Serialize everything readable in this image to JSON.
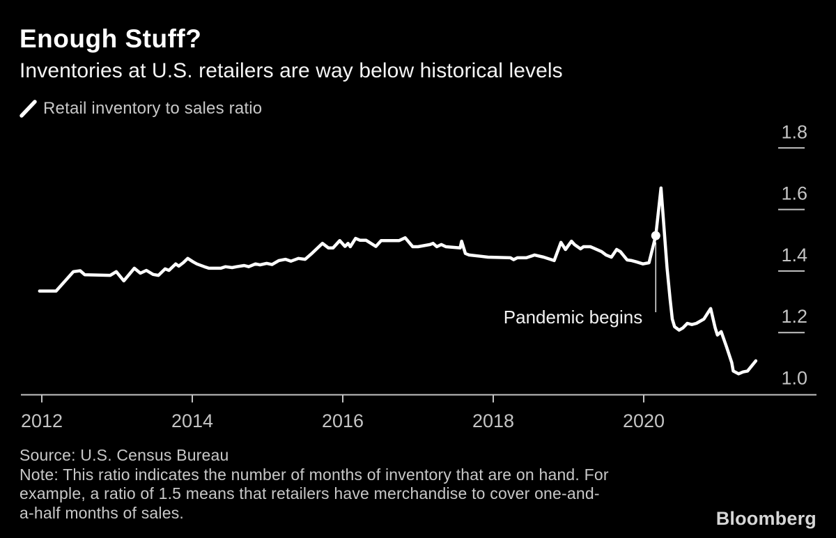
{
  "page": {
    "background": "#000000"
  },
  "header": {
    "title": "Enough Stuff?",
    "subtitle": "Inventories at U.S. retailers are way below historical levels"
  },
  "legend": {
    "series_label": "Retail inventory to sales ratio",
    "swatch_icon": "diagonal-line-swatch-icon",
    "swatch_color": "#ffffff"
  },
  "chart_data": {
    "type": "line",
    "title": "Enough Stuff?",
    "subtitle": "Inventories at U.S. retailers are way below historical levels",
    "xlabel": "",
    "ylabel": "Retail inventory to sales ratio (months of sales on hand)",
    "grid": false,
    "legend_position": "top-left",
    "x_axis": {
      "ticks": [
        2012,
        2014,
        2016,
        2018,
        2020
      ],
      "range": [
        2011.72,
        2022.3
      ]
    },
    "y_axis": {
      "ticks": [
        1.0,
        1.2,
        1.4,
        1.6,
        1.8
      ],
      "range": [
        1.0,
        1.8
      ],
      "position": "right",
      "decimals": 1
    },
    "annotation": {
      "label": "Pandemic begins",
      "x": 2020.16,
      "y": 1.515
    },
    "series": [
      {
        "name": "Retail inventory to sales ratio",
        "color": "#ffffff",
        "points": [
          [
            2011.97,
            1.335
          ],
          [
            2012.19,
            1.335
          ],
          [
            2012.42,
            1.398
          ],
          [
            2012.51,
            1.401
          ],
          [
            2012.57,
            1.388
          ],
          [
            2012.91,
            1.386
          ],
          [
            2012.99,
            1.398
          ],
          [
            2013.09,
            1.368
          ],
          [
            2013.23,
            1.409
          ],
          [
            2013.31,
            1.393
          ],
          [
            2013.39,
            1.402
          ],
          [
            2013.48,
            1.389
          ],
          [
            2013.55,
            1.386
          ],
          [
            2013.64,
            1.407
          ],
          [
            2013.69,
            1.402
          ],
          [
            2013.78,
            1.423
          ],
          [
            2013.82,
            1.416
          ],
          [
            2013.88,
            1.427
          ],
          [
            2013.94,
            1.441
          ],
          [
            2014.01,
            1.43
          ],
          [
            2014.06,
            1.423
          ],
          [
            2014.16,
            1.414
          ],
          [
            2014.22,
            1.409
          ],
          [
            2014.38,
            1.409
          ],
          [
            2014.44,
            1.414
          ],
          [
            2014.53,
            1.411
          ],
          [
            2014.59,
            1.414
          ],
          [
            2014.69,
            1.418
          ],
          [
            2014.75,
            1.414
          ],
          [
            2014.84,
            1.423
          ],
          [
            2014.9,
            1.42
          ],
          [
            2014.99,
            1.425
          ],
          [
            2015.06,
            1.421
          ],
          [
            2015.15,
            1.434
          ],
          [
            2015.24,
            1.438
          ],
          [
            2015.31,
            1.432
          ],
          [
            2015.41,
            1.441
          ],
          [
            2015.5,
            1.438
          ],
          [
            2015.58,
            1.455
          ],
          [
            2015.73,
            1.49
          ],
          [
            2015.81,
            1.475
          ],
          [
            2015.87,
            1.475
          ],
          [
            2015.96,
            1.499
          ],
          [
            2016.03,
            1.48
          ],
          [
            2016.07,
            1.49
          ],
          [
            2016.1,
            1.479
          ],
          [
            2016.17,
            1.506
          ],
          [
            2016.23,
            1.5
          ],
          [
            2016.31,
            1.5
          ],
          [
            2016.44,
            1.48
          ],
          [
            2016.51,
            1.499
          ],
          [
            2016.75,
            1.499
          ],
          [
            2016.83,
            1.508
          ],
          [
            2016.93,
            1.479
          ],
          [
            2017.0,
            1.479
          ],
          [
            2017.16,
            1.486
          ],
          [
            2017.2,
            1.49
          ],
          [
            2017.25,
            1.479
          ],
          [
            2017.31,
            1.486
          ],
          [
            2017.37,
            1.479
          ],
          [
            2017.56,
            1.475
          ],
          [
            2017.58,
            1.497
          ],
          [
            2017.63,
            1.457
          ],
          [
            2017.68,
            1.452
          ],
          [
            2017.83,
            1.448
          ],
          [
            2017.93,
            1.445
          ],
          [
            2018.23,
            1.443
          ],
          [
            2018.27,
            1.437
          ],
          [
            2018.32,
            1.443
          ],
          [
            2018.44,
            1.443
          ],
          [
            2018.55,
            1.452
          ],
          [
            2018.67,
            1.445
          ],
          [
            2018.81,
            1.434
          ],
          [
            2018.9,
            1.493
          ],
          [
            2018.96,
            1.47
          ],
          [
            2019.04,
            1.497
          ],
          [
            2019.08,
            1.486
          ],
          [
            2019.16,
            1.472
          ],
          [
            2019.2,
            1.479
          ],
          [
            2019.29,
            1.479
          ],
          [
            2019.33,
            1.475
          ],
          [
            2019.44,
            1.463
          ],
          [
            2019.5,
            1.452
          ],
          [
            2019.57,
            1.445
          ],
          [
            2019.64,
            1.47
          ],
          [
            2019.69,
            1.463
          ],
          [
            2019.78,
            1.436
          ],
          [
            2019.84,
            1.434
          ],
          [
            2019.9,
            1.43
          ],
          [
            2019.99,
            1.423
          ],
          [
            2020.07,
            1.427
          ],
          [
            2020.16,
            1.515
          ],
          [
            2020.23,
            1.67
          ],
          [
            2020.31,
            1.41
          ],
          [
            2020.35,
            1.31
          ],
          [
            2020.38,
            1.244
          ],
          [
            2020.41,
            1.219
          ],
          [
            2020.47,
            1.208
          ],
          [
            2020.52,
            1.215
          ],
          [
            2020.58,
            1.23
          ],
          [
            2020.64,
            1.226
          ],
          [
            2020.7,
            1.23
          ],
          [
            2020.8,
            1.244
          ],
          [
            2020.86,
            1.267
          ],
          [
            2020.89,
            1.278
          ],
          [
            2020.95,
            1.215
          ],
          [
            2020.98,
            1.192
          ],
          [
            2021.03,
            1.203
          ],
          [
            2021.1,
            1.154
          ],
          [
            2021.17,
            1.102
          ],
          [
            2021.19,
            1.075
          ],
          [
            2021.26,
            1.066
          ],
          [
            2021.32,
            1.072
          ],
          [
            2021.38,
            1.075
          ],
          [
            2021.49,
            1.108
          ]
        ]
      }
    ]
  },
  "footer": {
    "source": "Source: U.S. Census Bureau",
    "note_lines": [
      "Note: This ratio indicates the number of months of inventory that are on hand. For",
      "example, a ratio of 1.5 means that retailers have merchandise to cover one-and-",
      "a-half months of sales."
    ],
    "brand": "Bloomberg"
  }
}
